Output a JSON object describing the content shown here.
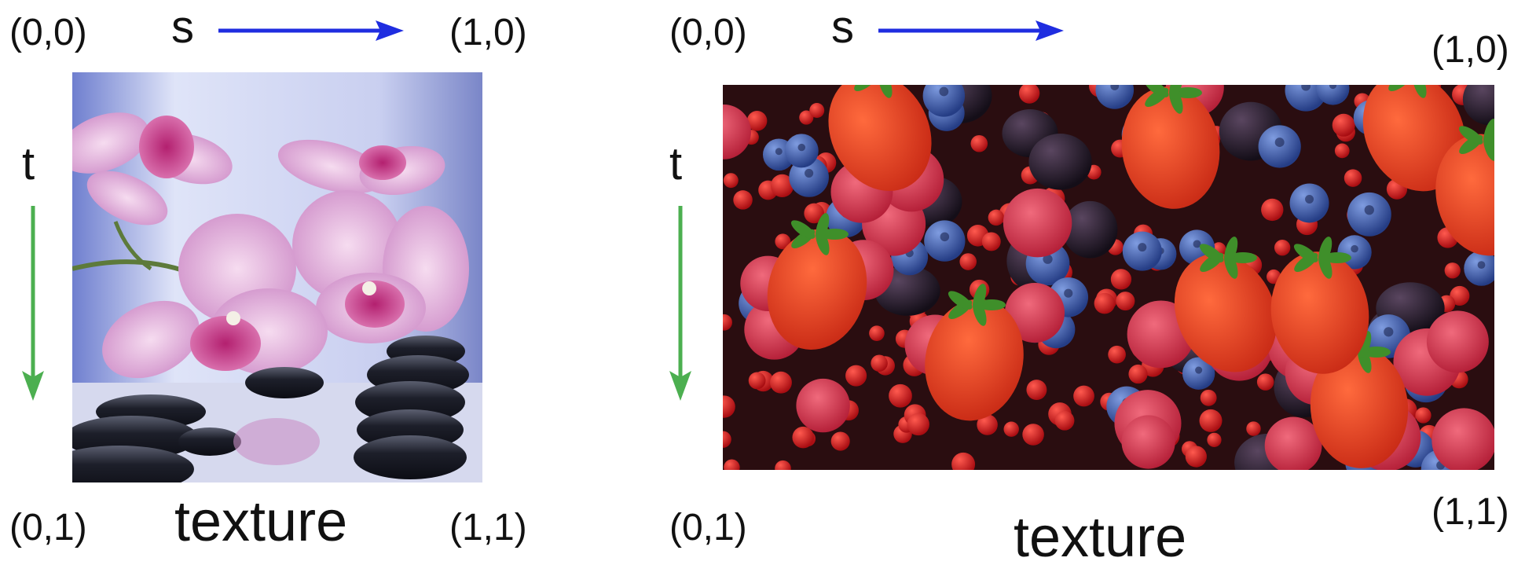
{
  "panels": [
    {
      "corners": {
        "tl": "(0,0)",
        "tr": "(1,0)",
        "bl": "(0,1)",
        "br": "(1,1)"
      },
      "s_label": "s",
      "t_label": "t",
      "caption": "texture",
      "image_subject": "orchid-stones-photo"
    },
    {
      "corners": {
        "tl": "(0,0)",
        "tr": "(1,0)",
        "bl": "(0,1)",
        "br": "(1,1)"
      },
      "s_label": "s",
      "t_label": "t",
      "caption": "texture",
      "image_subject": "berries-photo"
    }
  ],
  "colors": {
    "s_arrow": "#1f2de0",
    "t_arrow": "#4caf50"
  }
}
